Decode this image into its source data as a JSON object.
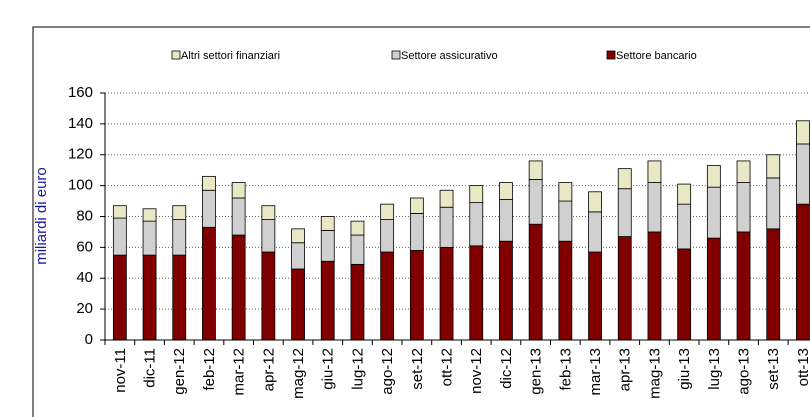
{
  "chart_data": {
    "type": "stacked_bar",
    "y_label": "miliardi di euro",
    "categories": [
      "nov-11",
      "dic-11",
      "gen-12",
      "feb-12",
      "mar-12",
      "apr-12",
      "mag-12",
      "giu-12",
      "lug-12",
      "ago-12",
      "set-12",
      "ott-12",
      "nov-12",
      "dic-12",
      "gen-13",
      "feb-13",
      "mar-13",
      "apr-13",
      "mag-13",
      "giu-13",
      "lug-13",
      "ago-13",
      "set-13",
      "ott-13"
    ],
    "series": [
      {
        "name": "Settore bancario",
        "color": "#800000",
        "values": [
          55,
          55,
          55,
          73,
          68,
          57,
          46,
          51,
          49,
          57,
          58,
          60,
          61,
          64,
          75,
          64,
          57,
          67,
          70,
          59,
          66,
          70,
          72,
          88
        ]
      },
      {
        "name": "Settore assicurativo",
        "color": "#d0d0d0",
        "values": [
          24,
          22,
          23,
          24,
          24,
          21,
          17,
          20,
          19,
          21,
          24,
          26,
          28,
          27,
          29,
          26,
          26,
          31,
          32,
          29,
          33,
          32,
          33,
          39
        ]
      },
      {
        "name": "Altri settori finanziari",
        "color": "#e8e8c4",
        "values": [
          8,
          8,
          9,
          9,
          10,
          9,
          9,
          9,
          9,
          10,
          10,
          11,
          11,
          11,
          12,
          12,
          13,
          13,
          14,
          13,
          14,
          14,
          15,
          15
        ]
      }
    ],
    "ylim": [
      0,
      160
    ],
    "yticks": [
      0,
      20,
      40,
      60,
      80,
      100,
      120,
      140,
      160
    ],
    "grid": true,
    "legend": "top"
  }
}
